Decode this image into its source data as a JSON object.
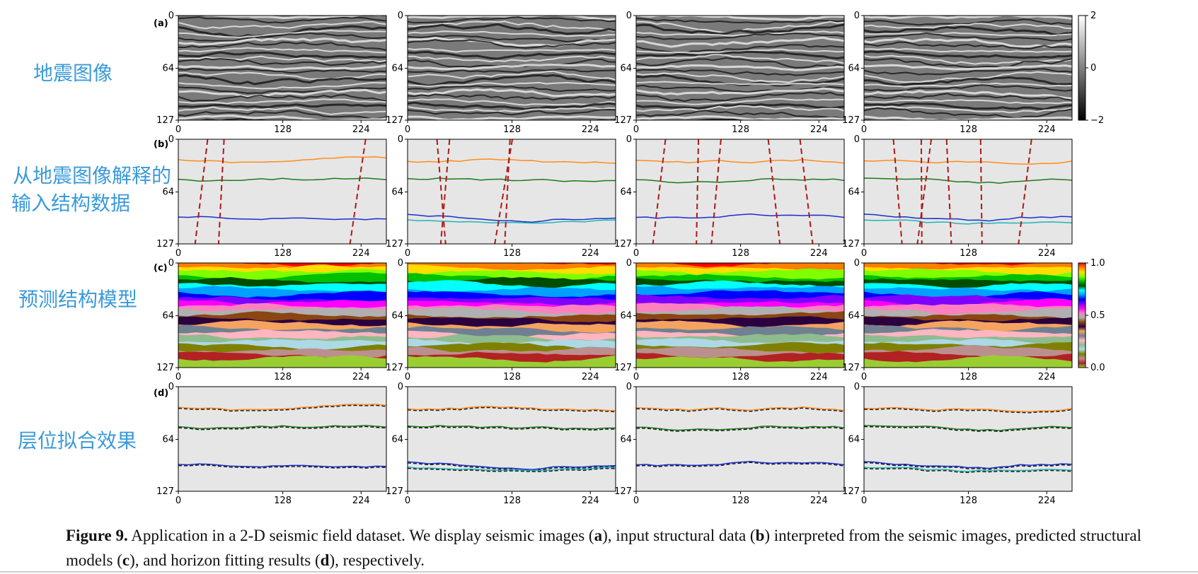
{
  "rows": [
    {
      "id": "a",
      "letter": "(a)",
      "label": [
        "地震图像"
      ]
    },
    {
      "id": "b",
      "letter": "(b)",
      "label": [
        "从地震图像解释的",
        "输入结构数据"
      ]
    },
    {
      "id": "c",
      "letter": "(c)",
      "label": [
        "预测结构模型"
      ]
    },
    {
      "id": "d",
      "letter": "(d)",
      "label": [
        "层位拟合效果"
      ]
    }
  ],
  "axes": {
    "x_ticks": [
      "0",
      "128",
      "224"
    ],
    "y_ticks": [
      "0",
      "64",
      "127"
    ]
  },
  "colorbars": {
    "seismic": {
      "ticks": [
        "2",
        "0",
        "−2"
      ]
    },
    "model": {
      "ticks": [
        "1.0",
        "0.5",
        "0.0"
      ]
    }
  },
  "caption": {
    "fig_label": "Figure 9.",
    "text_1": " Application in a 2-D seismic field dataset. We display seismic images (",
    "a": "a",
    "text_2": "), input structural data (",
    "b": "b",
    "text_3": ") interpreted from the seismic images, predicted structural models (",
    "c": "c",
    "text_4": "), and horizon fitting results (",
    "d": "d",
    "text_5": "), respectively."
  },
  "colors": {
    "row_label": "#3a9ad9",
    "fault": "#b01818",
    "horizon_orange": "#ff8c1a",
    "horizon_green": "#1a7a1a",
    "horizon_blue": "#1a2fd0",
    "horizon_cyan": "#22b5b5",
    "fit_dashed": "#111111",
    "panel_bg": "#e6e6e6"
  }
}
